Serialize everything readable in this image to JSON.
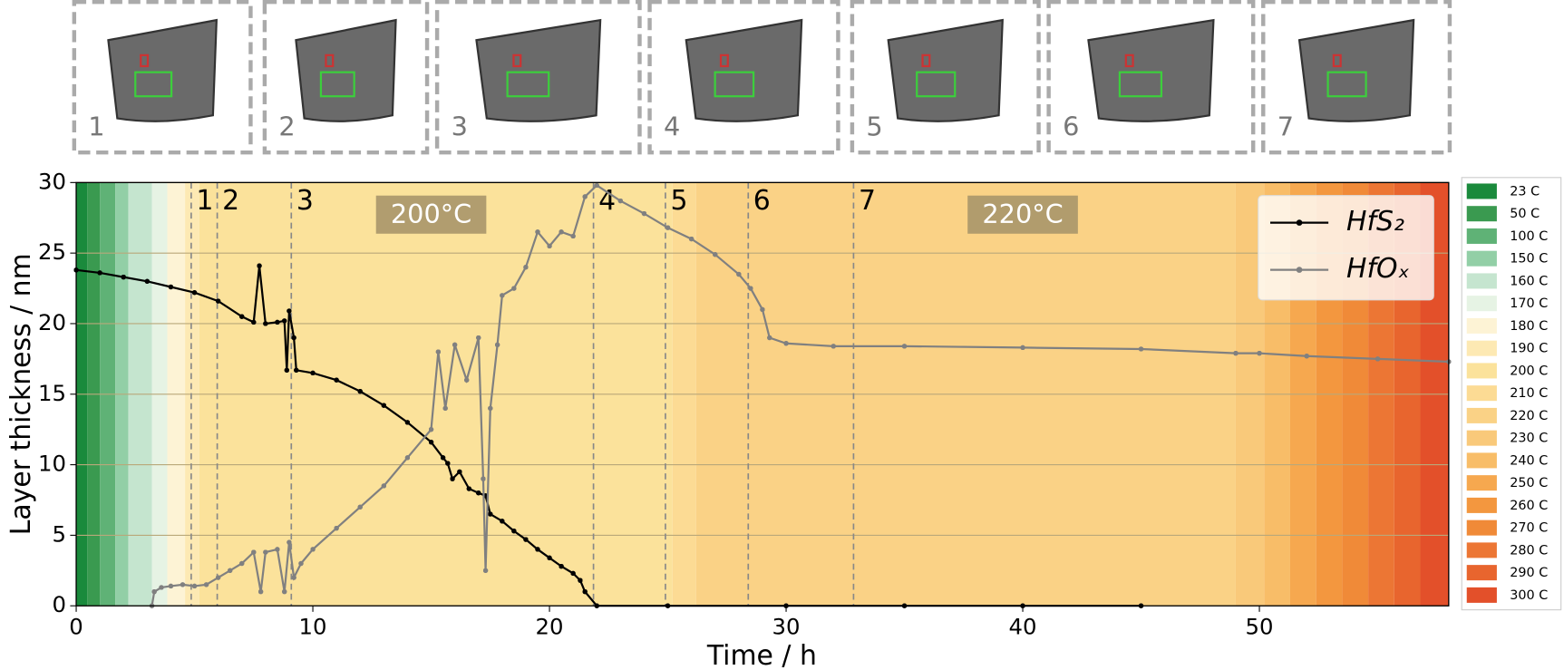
{
  "chart_data": {
    "type": "line",
    "panels": [
      "1",
      "2",
      "3",
      "4",
      "5",
      "6",
      "7"
    ],
    "x_label": "Time / h",
    "y_label": "Layer thickness / nm",
    "xlim": [
      0,
      58
    ],
    "ylim": [
      0,
      30
    ],
    "xticks": [
      0,
      10,
      20,
      30,
      40,
      50
    ],
    "yticks": [
      0,
      5,
      10,
      15,
      20,
      25,
      30
    ],
    "grid": true,
    "legend_position": "upper right",
    "markers": [
      {
        "x": 4.86,
        "label": "1"
      },
      {
        "x": 5.96,
        "label": "2"
      },
      {
        "x": 9.09,
        "label": "3"
      },
      {
        "x": 21.86,
        "label": "4"
      },
      {
        "x": 24.9,
        "label": "5"
      },
      {
        "x": 28.4,
        "label": "6"
      },
      {
        "x": 32.85,
        "label": "7"
      }
    ],
    "annotations": [
      {
        "x": 15,
        "label": "200°C"
      },
      {
        "x": 40,
        "label": "220°C"
      }
    ],
    "temperature_bands": [
      {
        "start": 0,
        "end": 0.47,
        "color": "#1a8a3c"
      },
      {
        "start": 0.47,
        "end": 1.0,
        "color": "#3a9a50"
      },
      {
        "start": 1.0,
        "end": 1.65,
        "color": "#5fb276"
      },
      {
        "start": 1.65,
        "end": 2.2,
        "color": "#92cfa6"
      },
      {
        "start": 2.2,
        "end": 3.2,
        "color": "#c5e5cf"
      },
      {
        "start": 3.2,
        "end": 3.85,
        "color": "#e6f3e4"
      },
      {
        "start": 3.85,
        "end": 4.6,
        "color": "#fdf3d5"
      },
      {
        "start": 4.6,
        "end": 5.2,
        "color": "#fde9b3"
      },
      {
        "start": 5.2,
        "end": 25.2,
        "color": "#fbe29b"
      },
      {
        "start": 25.2,
        "end": 26.2,
        "color": "#fcdb94"
      },
      {
        "start": 26.2,
        "end": 49,
        "color": "#fad286"
      },
      {
        "start": 49,
        "end": 50.2,
        "color": "#f9c97a"
      },
      {
        "start": 50.2,
        "end": 51.3,
        "color": "#f8bd68"
      },
      {
        "start": 51.3,
        "end": 52.4,
        "color": "#f6a84f"
      },
      {
        "start": 52.4,
        "end": 53.5,
        "color": "#f3973f"
      },
      {
        "start": 53.5,
        "end": 54.6,
        "color": "#f08a38"
      },
      {
        "start": 54.6,
        "end": 55.7,
        "color": "#ec7634"
      },
      {
        "start": 55.7,
        "end": 56.8,
        "color": "#e8652e"
      },
      {
        "start": 56.8,
        "end": 58,
        "color": "#e3502a"
      }
    ],
    "colorbar": [
      {
        "label": "23 C",
        "color": "#1a8a3c"
      },
      {
        "label": "50 C",
        "color": "#3a9a50"
      },
      {
        "label": "100 C",
        "color": "#5fb276"
      },
      {
        "label": "150 C",
        "color": "#92cfa6"
      },
      {
        "label": "160 C",
        "color": "#c5e5cf"
      },
      {
        "label": "170 C",
        "color": "#e6f3e4"
      },
      {
        "label": "180 C",
        "color": "#fdf3d5"
      },
      {
        "label": "190 C",
        "color": "#fde9b3"
      },
      {
        "label": "200 C",
        "color": "#fbe29b"
      },
      {
        "label": "210 C",
        "color": "#fcdb94"
      },
      {
        "label": "220 C",
        "color": "#fad286"
      },
      {
        "label": "230 C",
        "color": "#f9c97a"
      },
      {
        "label": "240 C",
        "color": "#f8bd68"
      },
      {
        "label": "250 C",
        "color": "#f6a84f"
      },
      {
        "label": "260 C",
        "color": "#f3973f"
      },
      {
        "label": "270 C",
        "color": "#f08a38"
      },
      {
        "label": "280 C",
        "color": "#ec7634"
      },
      {
        "label": "290 C",
        "color": "#e8652e"
      },
      {
        "label": "300 C",
        "color": "#e3502a"
      }
    ],
    "series": [
      {
        "name": "HfS₂",
        "color": "#000000",
        "x": [
          0,
          1,
          2,
          3,
          4,
          5,
          6,
          7,
          7.5,
          7.74,
          8.0,
          8.5,
          8.8,
          8.9,
          9.0,
          9.2,
          9.3,
          10,
          11,
          12,
          13,
          14,
          15,
          15.5,
          15.7,
          15.9,
          16.2,
          16.6,
          17,
          17.3,
          17.5,
          18,
          18.5,
          19,
          19.5,
          20,
          20.5,
          21,
          21.3,
          21.5,
          22,
          25,
          30,
          35,
          40,
          45
        ],
        "values": [
          23.8,
          23.6,
          23.3,
          23.0,
          22.6,
          22.2,
          21.6,
          20.5,
          20.1,
          24.1,
          20.0,
          20.1,
          20.2,
          16.7,
          20.9,
          19.0,
          16.7,
          16.5,
          16.0,
          15.2,
          14.2,
          13.0,
          11.6,
          10.5,
          10.1,
          9.0,
          9.5,
          8.3,
          8.0,
          7.8,
          6.5,
          6.0,
          5.3,
          4.7,
          4.0,
          3.4,
          2.8,
          2.3,
          1.8,
          1.0,
          0,
          0,
          0,
          0,
          0,
          0
        ]
      },
      {
        "name": "HfOₓ",
        "color": "#808080",
        "x": [
          3.2,
          3.3,
          3.6,
          4,
          4.5,
          5,
          5.5,
          6,
          6.5,
          7,
          7.5,
          7.8,
          8,
          8.5,
          8.8,
          9,
          9.2,
          9.5,
          10,
          11,
          12,
          13,
          14,
          15,
          15.3,
          15.6,
          16,
          16.5,
          17,
          17.2,
          17.3,
          17.5,
          17.8,
          18,
          18.5,
          19,
          19.5,
          20,
          20.5,
          21,
          21.5,
          22,
          23,
          24,
          25,
          26,
          27,
          28,
          28.5,
          29,
          29.3,
          30,
          32,
          35,
          40,
          45,
          49,
          50,
          52,
          55,
          58
        ],
        "values": [
          0,
          1.0,
          1.3,
          1.4,
          1.5,
          1.4,
          1.5,
          2.0,
          2.5,
          3.0,
          3.8,
          1.0,
          3.8,
          4.0,
          1.0,
          4.5,
          2.0,
          3.0,
          4.0,
          5.5,
          7.0,
          8.5,
          10.5,
          12.5,
          18.0,
          14.0,
          18.5,
          16.0,
          19.0,
          9.0,
          2.5,
          14.0,
          18.5,
          22.0,
          22.5,
          24.0,
          26.5,
          25.5,
          26.5,
          26.2,
          29.0,
          29.8,
          28.7,
          27.8,
          26.8,
          26.0,
          24.9,
          23.5,
          22.5,
          21.0,
          19.0,
          18.6,
          18.4,
          18.4,
          18.3,
          18.2,
          17.9,
          17.9,
          17.7,
          17.5,
          17.3
        ]
      }
    ]
  }
}
